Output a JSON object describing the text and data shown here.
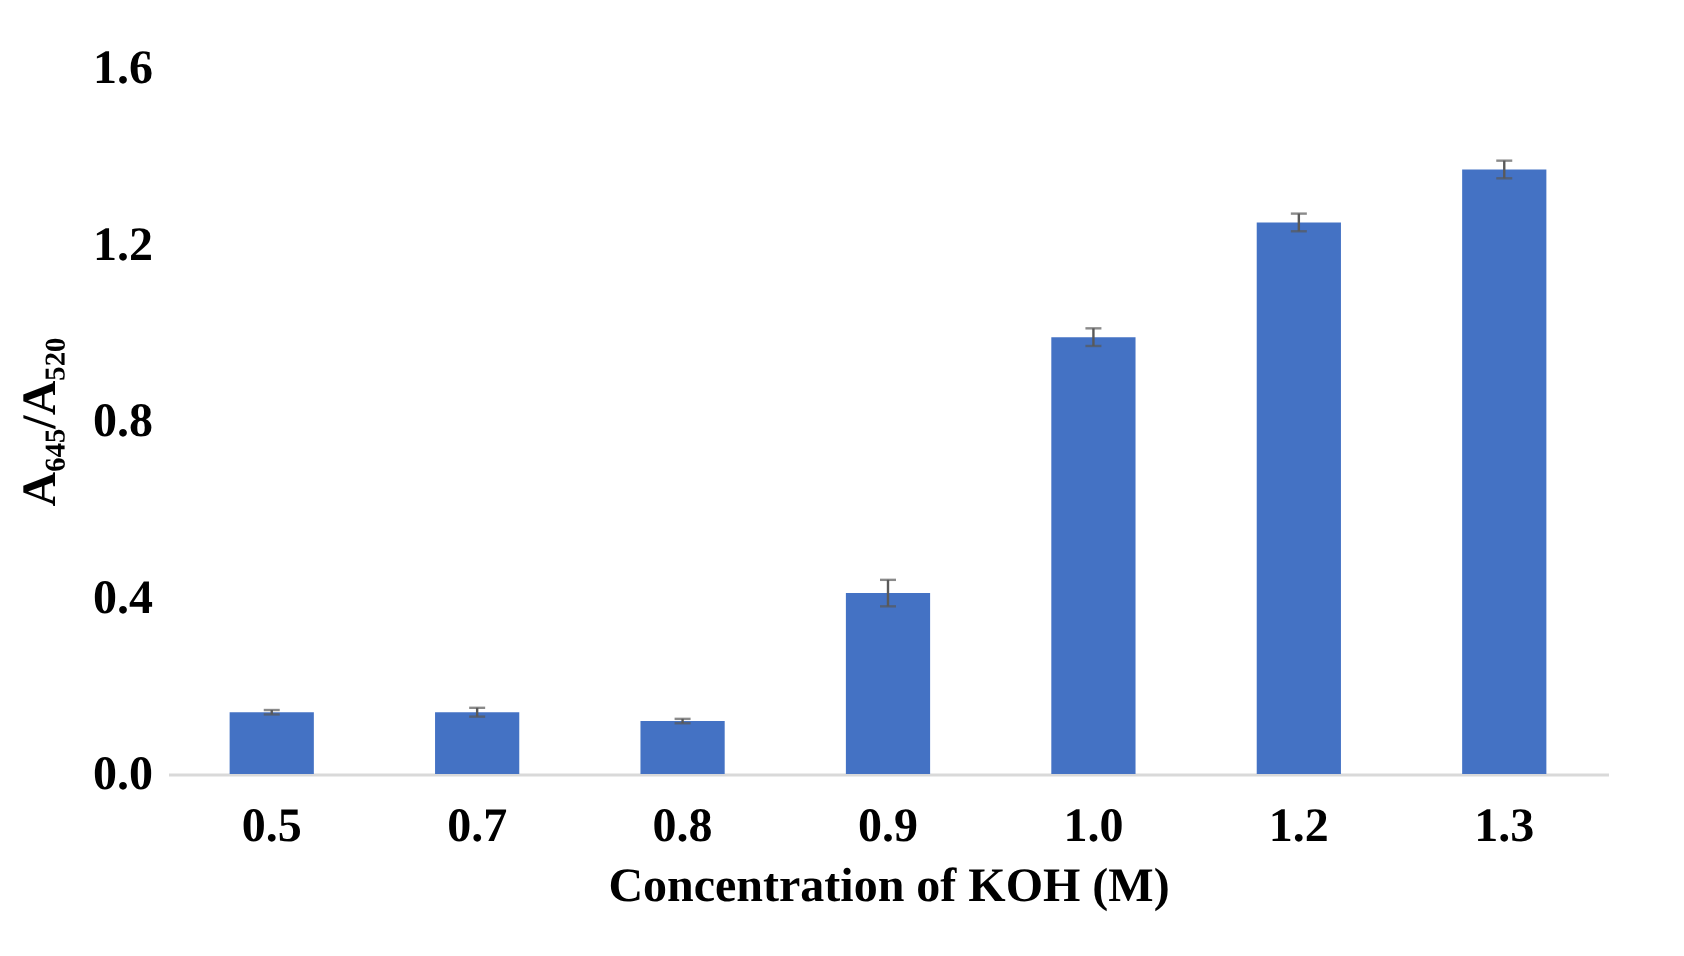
{
  "chart_data": {
    "type": "bar",
    "xlabel": "Concentration of KOH (M)",
    "ylabel": "A₆₄₅/A₅₂₀",
    "categories": [
      "0.5",
      "0.7",
      "0.8",
      "0.9",
      "1.0",
      "1.2",
      "1.3"
    ],
    "values": [
      0.14,
      0.14,
      0.12,
      0.41,
      0.99,
      1.25,
      1.37
    ],
    "errors": [
      0.005,
      0.01,
      0.005,
      0.03,
      0.02,
      0.02,
      0.02
    ],
    "color": "#4472c4",
    "ylim": [
      0,
      1.6
    ],
    "yticks": [
      {
        "value": 0,
        "label": "0.0"
      },
      {
        "value": 0.4,
        "label": "0.4"
      },
      {
        "value": 0.8,
        "label": "0.8"
      },
      {
        "value": 1.2,
        "label": "1.2"
      },
      {
        "value": 1.6,
        "label": "1.6"
      }
    ],
    "grid": false
  }
}
